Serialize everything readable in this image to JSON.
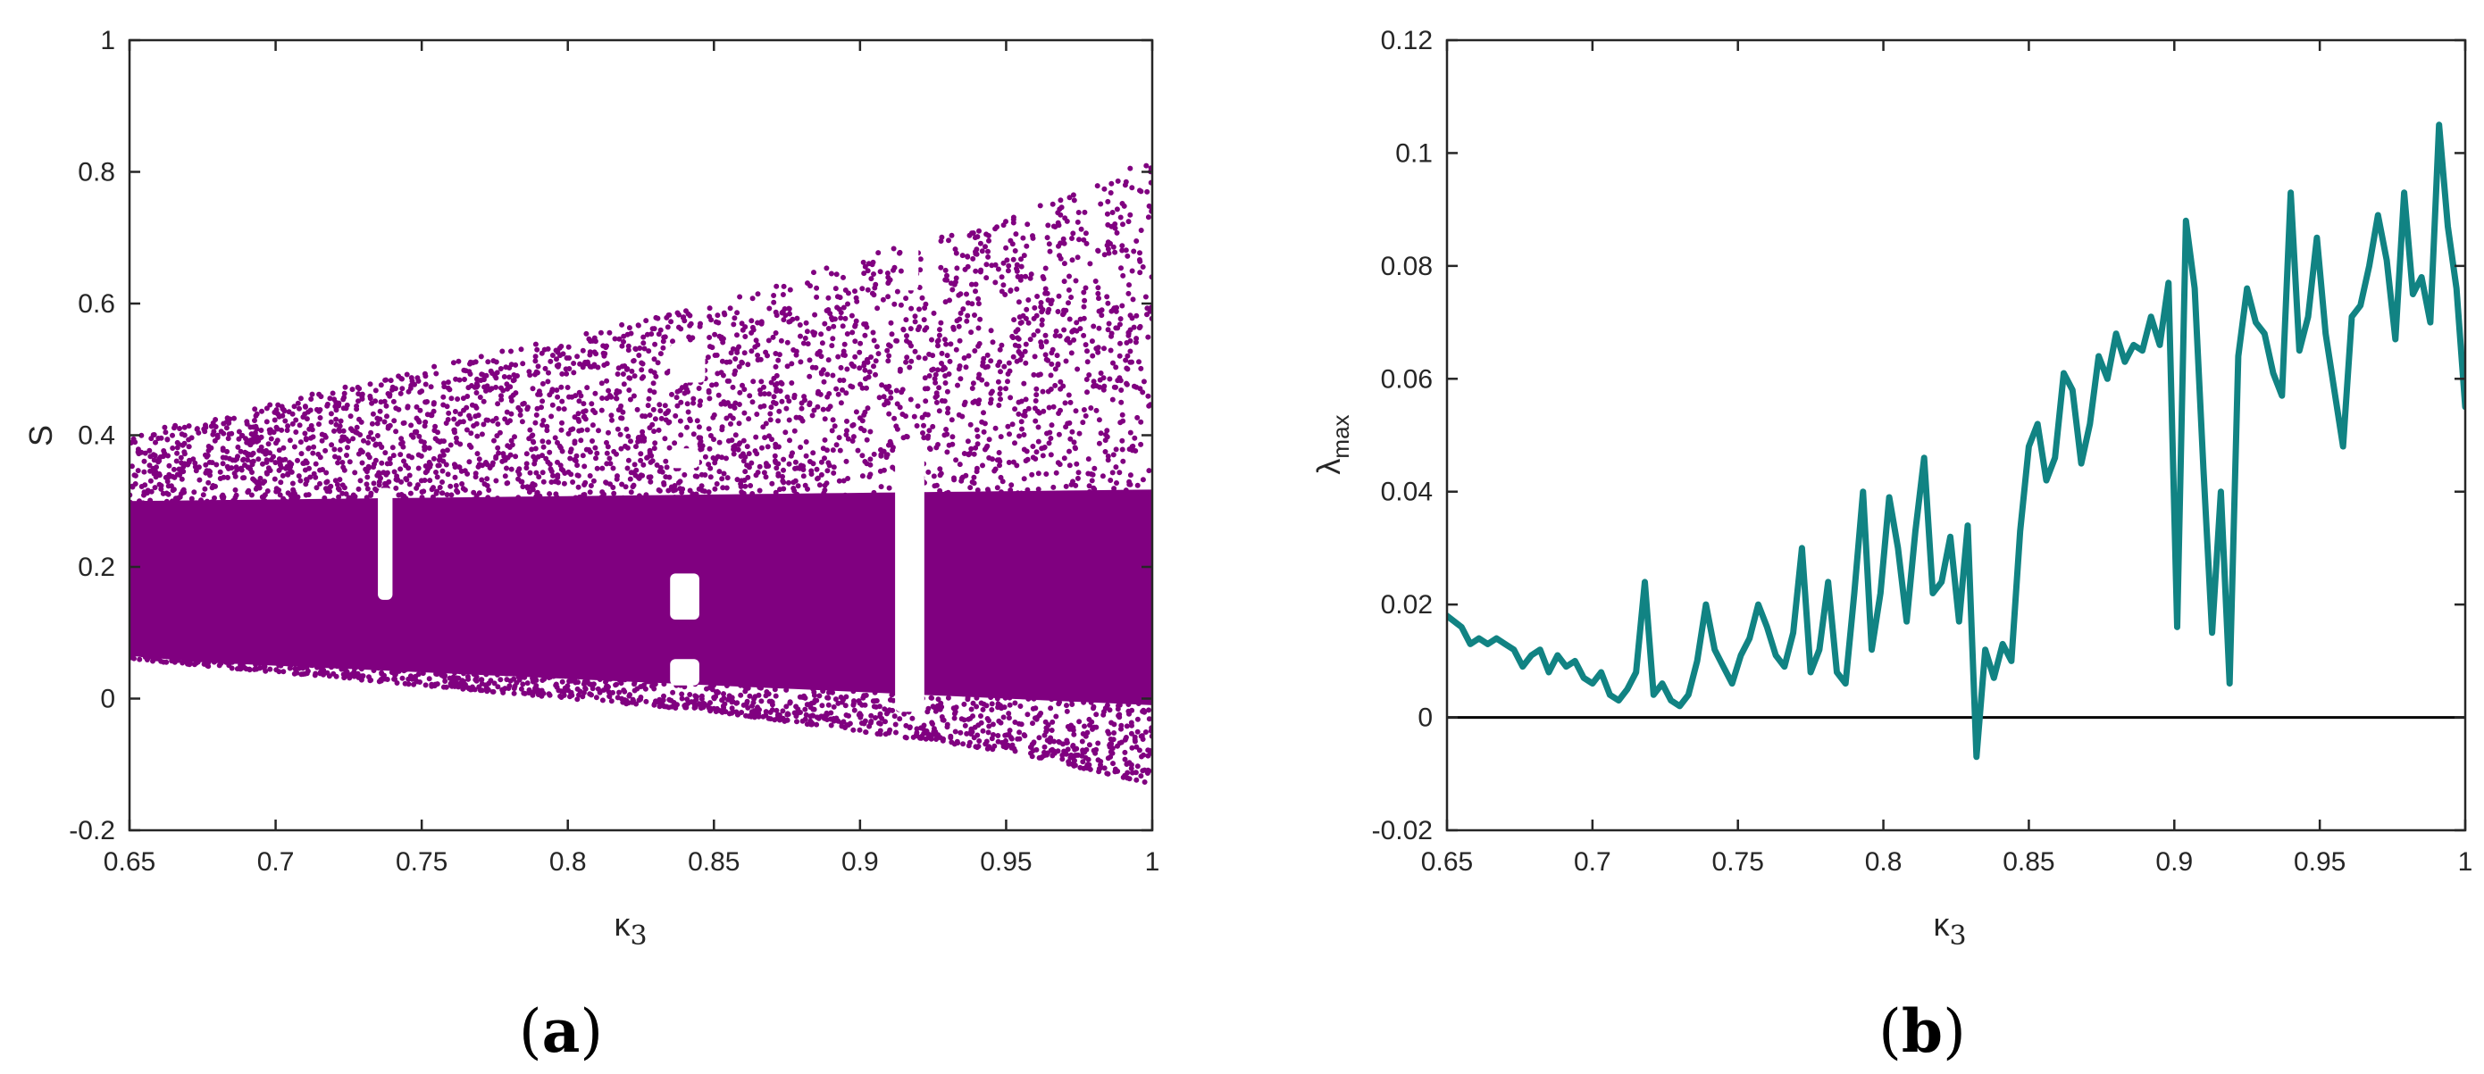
{
  "figure": {
    "panel_labels": [
      "(a)",
      "(b)"
    ]
  },
  "chart_data": [
    {
      "type": "scatter",
      "panel": "(a)",
      "xlabel": "κ",
      "xlabel_sub": "3",
      "ylabel": "S",
      "xlim": [
        0.65,
        1.0
      ],
      "ylim": [
        -0.2,
        1.0
      ],
      "xticks": [
        0.65,
        0.7,
        0.75,
        0.8,
        0.85,
        0.9,
        0.95,
        1.0
      ],
      "xtick_labels": [
        "0.65",
        "0.7",
        "0.75",
        "0.8",
        "0.85",
        "0.9",
        "0.95",
        "1"
      ],
      "yticks": [
        -0.2,
        0,
        0.2,
        0.4,
        0.6,
        0.8,
        1.0
      ],
      "ytick_labels": [
        "-0.2",
        "0",
        "0.2",
        "0.4",
        "0.6",
        "0.8",
        "1"
      ],
      "grid": false,
      "color": "#800080",
      "envelope": {
        "x": [
          0.65,
          0.7,
          0.75,
          0.8,
          0.85,
          0.9,
          0.95,
          1.0
        ],
        "lower": [
          0.06,
          0.04,
          0.02,
          0.0,
          -0.02,
          -0.05,
          -0.08,
          -0.13
        ],
        "upper": [
          0.4,
          0.45,
          0.5,
          0.55,
          0.6,
          0.67,
          0.73,
          0.82
        ]
      },
      "dense_band": [
        0.06,
        0.3
      ],
      "gaps": [
        {
          "x": [
            0.735,
            0.74
          ],
          "y": [
            0.15,
            0.32
          ]
        },
        {
          "x": [
            0.835,
            0.845
          ],
          "y": [
            0.02,
            0.06
          ]
        },
        {
          "x": [
            0.835,
            0.845
          ],
          "y": [
            0.12,
            0.19
          ]
        },
        {
          "x": [
            0.835,
            0.845
          ],
          "y": [
            0.35,
            0.38
          ]
        },
        {
          "x": [
            0.835,
            0.847
          ],
          "y": [
            0.48,
            0.54
          ]
        },
        {
          "x": [
            0.912,
            0.922
          ],
          "y": [
            -0.02,
            0.38
          ]
        },
        {
          "x": [
            0.915,
            0.92
          ],
          "y": [
            0.62,
            0.69
          ]
        }
      ]
    },
    {
      "type": "line",
      "panel": "(b)",
      "xlabel": "κ",
      "xlabel_sub": "3",
      "ylabel": "λ",
      "ylabel_sub": "max",
      "xlim": [
        0.65,
        1.0
      ],
      "ylim": [
        -0.02,
        0.12
      ],
      "xticks": [
        0.65,
        0.7,
        0.75,
        0.8,
        0.85,
        0.9,
        0.95,
        1.0
      ],
      "xtick_labels": [
        "0.65",
        "0.7",
        "0.75",
        "0.8",
        "0.85",
        "0.9",
        "0.95",
        "1"
      ],
      "yticks": [
        -0.02,
        0,
        0.02,
        0.04,
        0.06,
        0.08,
        0.1,
        0.12
      ],
      "ytick_labels": [
        "-0.02",
        "0",
        "0.02",
        "0.04",
        "0.06",
        "0.08",
        "0.1",
        "0.12"
      ],
      "grid": false,
      "reference_line_y": 0,
      "series": [
        {
          "color": "#118383",
          "x": [
            0.65,
            0.655,
            0.658,
            0.661,
            0.664,
            0.667,
            0.67,
            0.673,
            0.676,
            0.679,
            0.682,
            0.685,
            0.688,
            0.691,
            0.694,
            0.697,
            0.7,
            0.703,
            0.706,
            0.709,
            0.712,
            0.715,
            0.718,
            0.721,
            0.724,
            0.727,
            0.73,
            0.733,
            0.736,
            0.739,
            0.742,
            0.745,
            0.748,
            0.751,
            0.754,
            0.757,
            0.76,
            0.763,
            0.766,
            0.769,
            0.772,
            0.775,
            0.778,
            0.781,
            0.784,
            0.787,
            0.79,
            0.793,
            0.796,
            0.799,
            0.802,
            0.805,
            0.808,
            0.811,
            0.814,
            0.817,
            0.82,
            0.823,
            0.826,
            0.829,
            0.832,
            0.835,
            0.838,
            0.841,
            0.844,
            0.847,
            0.85,
            0.853,
            0.856,
            0.859,
            0.862,
            0.865,
            0.868,
            0.871,
            0.874,
            0.877,
            0.88,
            0.883,
            0.886,
            0.889,
            0.892,
            0.895,
            0.898,
            0.901,
            0.904,
            0.907,
            0.91,
            0.913,
            0.916,
            0.919,
            0.922,
            0.925,
            0.928,
            0.931,
            0.934,
            0.937,
            0.94,
            0.943,
            0.946,
            0.949,
            0.952,
            0.955,
            0.958,
            0.961,
            0.964,
            0.967,
            0.97,
            0.973,
            0.976,
            0.979,
            0.982,
            0.985,
            0.988,
            0.991,
            0.994,
            0.997,
            1.0
          ],
          "y": [
            0.018,
            0.016,
            0.013,
            0.014,
            0.013,
            0.014,
            0.013,
            0.012,
            0.009,
            0.011,
            0.012,
            0.008,
            0.011,
            0.009,
            0.01,
            0.007,
            0.006,
            0.008,
            0.004,
            0.003,
            0.005,
            0.008,
            0.024,
            0.004,
            0.006,
            0.003,
            0.002,
            0.004,
            0.01,
            0.02,
            0.012,
            0.009,
            0.006,
            0.011,
            0.014,
            0.02,
            0.016,
            0.011,
            0.009,
            0.015,
            0.03,
            0.008,
            0.012,
            0.024,
            0.008,
            0.006,
            0.022,
            0.04,
            0.012,
            0.022,
            0.039,
            0.03,
            0.017,
            0.033,
            0.046,
            0.022,
            0.024,
            0.032,
            0.017,
            0.034,
            -0.007,
            0.012,
            0.007,
            0.013,
            0.01,
            0.033,
            0.048,
            0.052,
            0.042,
            0.046,
            0.061,
            0.058,
            0.045,
            0.052,
            0.064,
            0.06,
            0.068,
            0.063,
            0.066,
            0.065,
            0.071,
            0.066,
            0.077,
            0.016,
            0.088,
            0.076,
            0.044,
            0.015,
            0.04,
            0.006,
            0.064,
            0.076,
            0.07,
            0.068,
            0.061,
            0.057,
            0.093,
            0.065,
            0.071,
            0.085,
            0.068,
            0.058,
            0.048,
            0.071,
            0.073,
            0.08,
            0.089,
            0.081,
            0.067,
            0.093,
            0.075,
            0.078,
            0.07,
            0.105,
            0.087,
            0.076,
            0.055
          ]
        }
      ]
    }
  ]
}
